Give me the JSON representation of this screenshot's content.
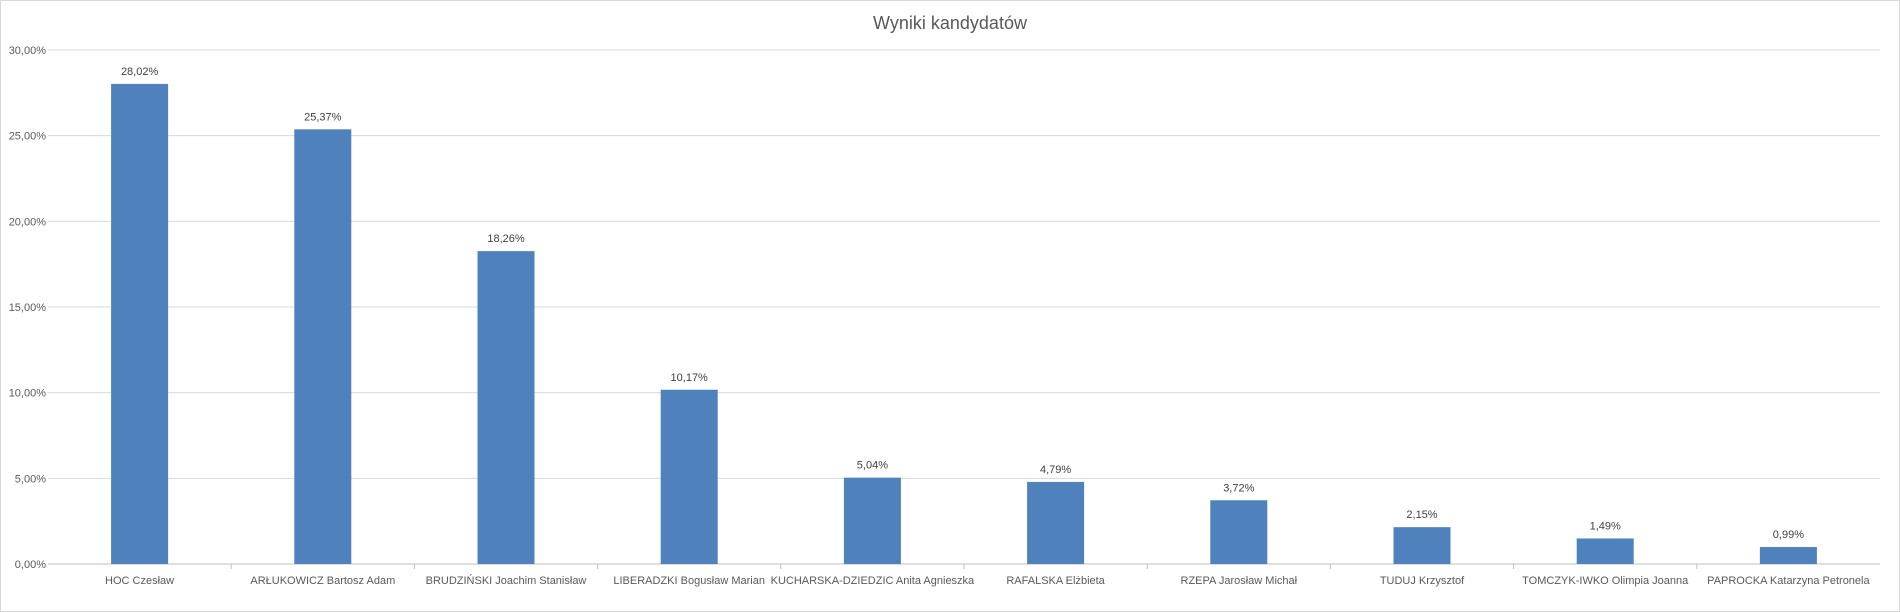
{
  "chart_data": {
    "type": "bar",
    "title": "Wyniki kandydatów",
    "xlabel": "",
    "ylabel": "",
    "ylim": [
      0,
      30
    ],
    "yticks": [
      "0,00%",
      "5,00%",
      "10,00%",
      "15,00%",
      "20,00%",
      "25,00%",
      "30,00%"
    ],
    "grid": true,
    "legend": "none",
    "bar_color": "#4f81bd",
    "categories": [
      "HOC Czesław",
      "ARŁUKOWICZ Bartosz Adam",
      "BRUDZIŃSKI Joachim Stanisław",
      "LIBERADZKI Bogusław Marian",
      "KUCHARSKA-DZIEDZIC Anita Agnieszka",
      "RAFALSKA Elżbieta",
      "RZEPA Jarosław Michał",
      "TUDUJ Krzysztof",
      "TOMCZYK-IWKO Olimpia Joanna",
      "PAPROCKA Katarzyna Petronela"
    ],
    "values": [
      28.02,
      25.37,
      18.26,
      10.17,
      5.04,
      4.79,
      3.72,
      2.15,
      1.49,
      0.99
    ],
    "data_labels": [
      "28,02%",
      "25,37%",
      "18,26%",
      "10,17%",
      "5,04%",
      "4,79%",
      "3,72%",
      "2,15%",
      "1,49%",
      "0,99%"
    ]
  }
}
